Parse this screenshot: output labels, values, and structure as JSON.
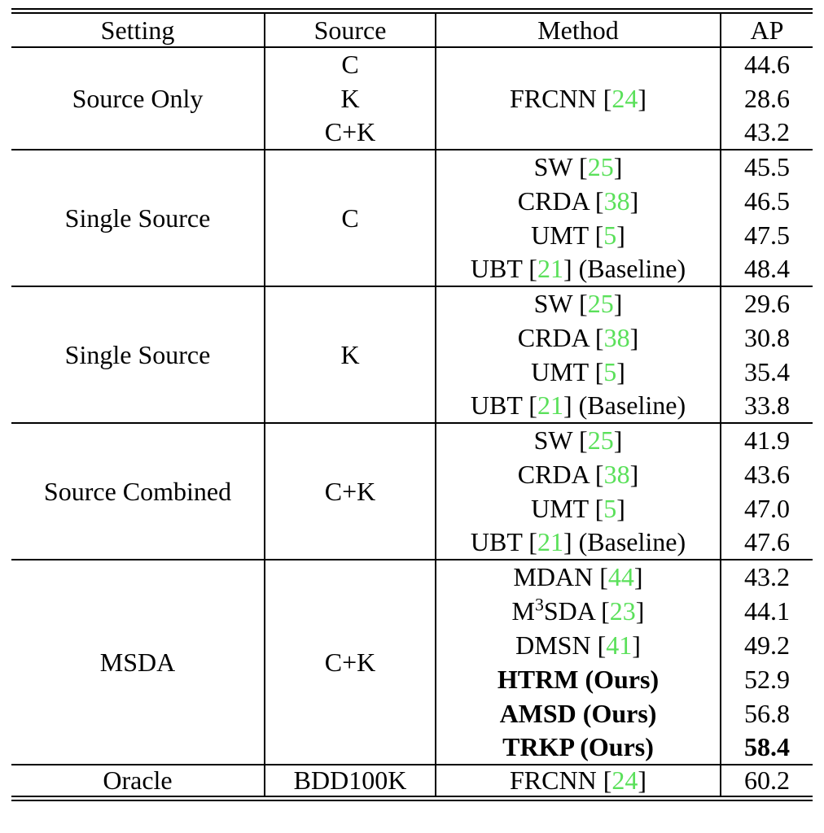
{
  "accent": {
    "citation_green": "#5ae05a"
  },
  "table": {
    "headers": {
      "setting": "Setting",
      "source": "Source",
      "method": "Method",
      "ap": "AP"
    },
    "blocks": [
      {
        "setting": "Source Only",
        "method": {
          "a": "FRCNN [",
          "cite": "24",
          "c": "]"
        },
        "rows": [
          {
            "source": "C",
            "ap": "44.6"
          },
          {
            "source": "K",
            "ap": "28.6"
          },
          {
            "source": "C+K",
            "ap": "43.2"
          }
        ]
      },
      {
        "setting": "Single Source",
        "source": "C",
        "rows": [
          {
            "a": "SW [",
            "cite": "25",
            "c": "]",
            "ap": "45.5"
          },
          {
            "a": "CRDA [",
            "cite": "38",
            "c": "]",
            "ap": "46.5"
          },
          {
            "a": "UMT [",
            "cite": "5",
            "c": "]",
            "ap": "47.5"
          },
          {
            "a": "UBT [",
            "cite": "21",
            "c": "] (Baseline)",
            "ap": "48.4"
          }
        ]
      },
      {
        "setting": "Single Source",
        "source": "K",
        "rows": [
          {
            "a": "SW [",
            "cite": "25",
            "c": "]",
            "ap": "29.6"
          },
          {
            "a": "CRDA [",
            "cite": "38",
            "c": "]",
            "ap": "30.8"
          },
          {
            "a": "UMT [",
            "cite": "5",
            "c": "]",
            "ap": "35.4"
          },
          {
            "a": "UBT [",
            "cite": "21",
            "c": "] (Baseline)",
            "ap": "33.8"
          }
        ]
      },
      {
        "setting": "Source Combined",
        "source": "C+K",
        "rows": [
          {
            "a": "SW [",
            "cite": "25",
            "c": "]",
            "ap": "41.9"
          },
          {
            "a": "CRDA [",
            "cite": "38",
            "c": "]",
            "ap": "43.6"
          },
          {
            "a": "UMT [",
            "cite": "5",
            "c": "]",
            "ap": "47.0"
          },
          {
            "a": "UBT [",
            "cite": "21",
            "c": "] (Baseline)",
            "ap": "47.6"
          }
        ]
      },
      {
        "setting": "MSDA",
        "source": "C+K",
        "rows": [
          {
            "a": "MDAN [",
            "cite": "44",
            "c": "]",
            "ap": "43.2"
          },
          {
            "a": "M",
            "sup": "3",
            "b": "SDA [",
            "cite": "23",
            "c": "]",
            "ap": "44.1"
          },
          {
            "a": "DMSN [",
            "cite": "41",
            "c": "]",
            "ap": "49.2"
          },
          {
            "a": "HTRM (Ours)",
            "bold": true,
            "ap": "52.9"
          },
          {
            "a": "AMSD (Ours)",
            "bold": true,
            "ap": "56.8"
          },
          {
            "a": "TRKP (Ours)",
            "bold": true,
            "ap": "58.4",
            "apBold": true
          }
        ]
      },
      {
        "setting": "Oracle",
        "source": "BDD100K",
        "rows": [
          {
            "a": "FRCNN [",
            "cite": "24",
            "c": "]",
            "ap": "60.2"
          }
        ]
      }
    ]
  },
  "chart_data": {
    "type": "table",
    "columns": [
      "Setting",
      "Source",
      "Method",
      "AP"
    ],
    "rows": [
      [
        "Source Only",
        "C",
        "FRCNN [24]",
        44.6
      ],
      [
        "Source Only",
        "K",
        "FRCNN [24]",
        28.6
      ],
      [
        "Source Only",
        "C+K",
        "FRCNN [24]",
        43.2
      ],
      [
        "Single Source",
        "C",
        "SW [25]",
        45.5
      ],
      [
        "Single Source",
        "C",
        "CRDA [38]",
        46.5
      ],
      [
        "Single Source",
        "C",
        "UMT [5]",
        47.5
      ],
      [
        "Single Source",
        "C",
        "UBT [21] (Baseline)",
        48.4
      ],
      [
        "Single Source",
        "K",
        "SW [25]",
        29.6
      ],
      [
        "Single Source",
        "K",
        "CRDA [38]",
        30.8
      ],
      [
        "Single Source",
        "K",
        "UMT [5]",
        35.4
      ],
      [
        "Single Source",
        "K",
        "UBT [21] (Baseline)",
        33.8
      ],
      [
        "Source Combined",
        "C+K",
        "SW [25]",
        41.9
      ],
      [
        "Source Combined",
        "C+K",
        "CRDA [38]",
        43.6
      ],
      [
        "Source Combined",
        "C+K",
        "UMT [5]",
        47.0
      ],
      [
        "Source Combined",
        "C+K",
        "UBT [21] (Baseline)",
        47.6
      ],
      [
        "MSDA",
        "C+K",
        "MDAN [44]",
        43.2
      ],
      [
        "MSDA",
        "C+K",
        "M3SDA [23]",
        44.1
      ],
      [
        "MSDA",
        "C+K",
        "DMSN [41]",
        49.2
      ],
      [
        "MSDA",
        "C+K",
        "HTRM (Ours)",
        52.9
      ],
      [
        "MSDA",
        "C+K",
        "AMSD (Ours)",
        56.8
      ],
      [
        "MSDA",
        "C+K",
        "TRKP (Ours)",
        58.4
      ],
      [
        "Oracle",
        "BDD100K",
        "FRCNN [24]",
        60.2
      ]
    ]
  }
}
